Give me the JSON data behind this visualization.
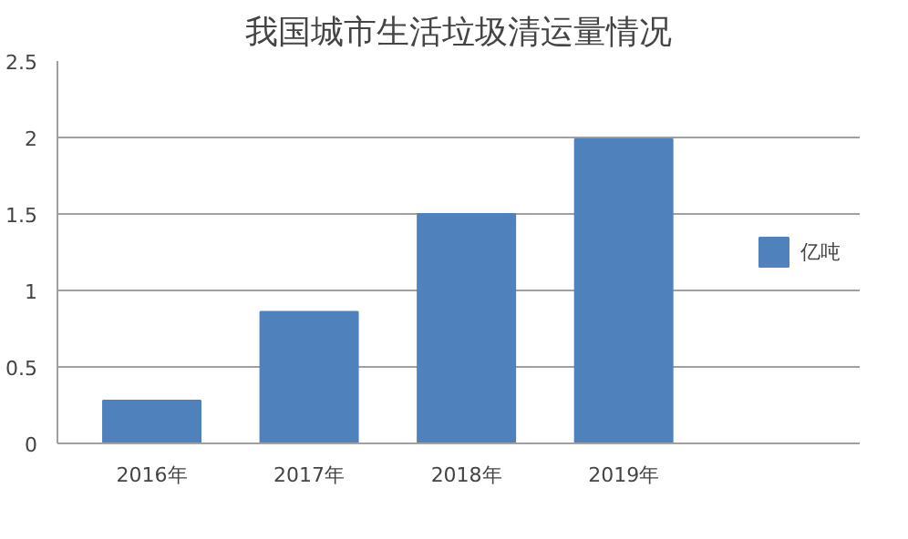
{
  "chart_data": {
    "type": "bar",
    "title": "我国城市生活垃圾清运量情况",
    "categories": [
      "2016年",
      "2017年",
      "2018年",
      "2019年"
    ],
    "series": [
      {
        "name": "亿吨",
        "color": "#4f81bd",
        "values": [
          0.28,
          0.86,
          1.5,
          1.99
        ]
      }
    ],
    "ylim": [
      0,
      2.5
    ],
    "yticks": [
      0,
      0.5,
      1,
      1.5,
      2,
      2.5
    ],
    "grid": "y",
    "legend": "right"
  }
}
